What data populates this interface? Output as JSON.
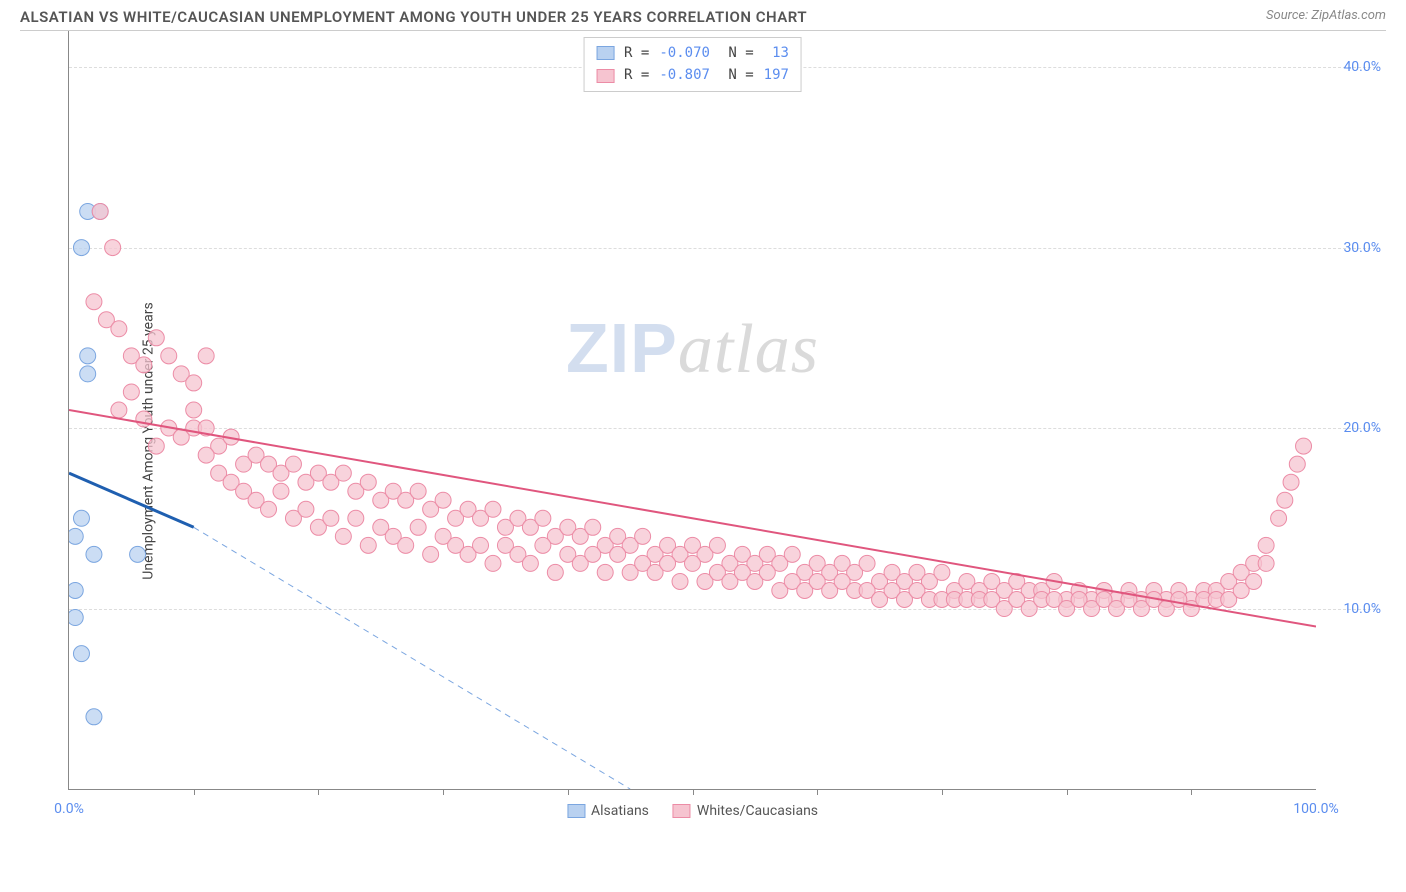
{
  "title": "ALSATIAN VS WHITE/CAUCASIAN UNEMPLOYMENT AMONG YOUTH UNDER 25 YEARS CORRELATION CHART",
  "source": "Source: ZipAtlas.com",
  "ylabel": "Unemployment Among Youth under 25 years",
  "watermark_zip": "ZIP",
  "watermark_atlas": "atlas",
  "chart": {
    "type": "scatter",
    "xlim": [
      0,
      100
    ],
    "ylim": [
      0,
      42
    ],
    "xtick_label_left": "0.0%",
    "xtick_label_right": "100.0%",
    "xtick_positions": [
      10,
      20,
      30,
      40,
      50,
      60,
      70,
      80,
      90
    ],
    "ytick_labels": [
      "10.0%",
      "20.0%",
      "30.0%",
      "40.0%"
    ],
    "ytick_values": [
      10,
      20,
      30,
      40
    ],
    "grid_color": "#dddddd",
    "background_color": "#ffffff",
    "marker_radius": 8,
    "series": [
      {
        "name": "Alsatians",
        "fill": "#b9d1f0",
        "stroke": "#7ba6e0",
        "r_value": "-0.070",
        "n_value": "13",
        "trend_solid": {
          "x1": 0,
          "y1": 17.5,
          "x2": 10,
          "y2": 14.5,
          "color": "#1f5fb0",
          "width": 3
        },
        "trend_dashed": {
          "x1": 10,
          "y1": 14.5,
          "x2": 45,
          "y2": 0,
          "color": "#7ba6e0",
          "width": 1
        },
        "points": [
          [
            1.5,
            32
          ],
          [
            1,
            30
          ],
          [
            1.5,
            24
          ],
          [
            1.5,
            23
          ],
          [
            1,
            15
          ],
          [
            0.5,
            14
          ],
          [
            2,
            13
          ],
          [
            5.5,
            13
          ],
          [
            0.5,
            11
          ],
          [
            0.5,
            9.5
          ],
          [
            1,
            7.5
          ],
          [
            2,
            4
          ],
          [
            2.5,
            32
          ]
        ]
      },
      {
        "name": "Whites/Caucasians",
        "fill": "#f6c4d0",
        "stroke": "#ec8ca6",
        "r_value": "-0.807",
        "n_value": "197",
        "trend_solid": {
          "x1": 0,
          "y1": 21,
          "x2": 100,
          "y2": 9,
          "color": "#e0567e",
          "width": 2
        },
        "points": [
          [
            2.5,
            32
          ],
          [
            3.5,
            30
          ],
          [
            2,
            27
          ],
          [
            3,
            26
          ],
          [
            4,
            25.5
          ],
          [
            5,
            24
          ],
          [
            6,
            23.5
          ],
          [
            7,
            25
          ],
          [
            8,
            24
          ],
          [
            9,
            23
          ],
          [
            5,
            22
          ],
          [
            10,
            22.5
          ],
          [
            11,
            24
          ],
          [
            4,
            21
          ],
          [
            6,
            20.5
          ],
          [
            8,
            20
          ],
          [
            9,
            19.5
          ],
          [
            10,
            20
          ],
          [
            12,
            19
          ],
          [
            13,
            19.5
          ],
          [
            7,
            19
          ],
          [
            14,
            18
          ],
          [
            15,
            18.5
          ],
          [
            16,
            18
          ],
          [
            17,
            17.5
          ],
          [
            18,
            18
          ],
          [
            11,
            18.5
          ],
          [
            12,
            17.5
          ],
          [
            19,
            17
          ],
          [
            20,
            17.5
          ],
          [
            21,
            17
          ],
          [
            22,
            17.5
          ],
          [
            23,
            16.5
          ],
          [
            24,
            17
          ],
          [
            25,
            16
          ],
          [
            26,
            16.5
          ],
          [
            13,
            17
          ],
          [
            14,
            16.5
          ],
          [
            27,
            16
          ],
          [
            28,
            16.5
          ],
          [
            29,
            15.5
          ],
          [
            30,
            16
          ],
          [
            31,
            15
          ],
          [
            32,
            15.5
          ],
          [
            33,
            15
          ],
          [
            34,
            15.5
          ],
          [
            35,
            14.5
          ],
          [
            36,
            15
          ],
          [
            15,
            16
          ],
          [
            16,
            15.5
          ],
          [
            37,
            14.5
          ],
          [
            38,
            15
          ],
          [
            39,
            14
          ],
          [
            40,
            14.5
          ],
          [
            41,
            14
          ],
          [
            42,
            14.5
          ],
          [
            43,
            13.5
          ],
          [
            44,
            14
          ],
          [
            45,
            13.5
          ],
          [
            46,
            14
          ],
          [
            17,
            16.5
          ],
          [
            18,
            15
          ],
          [
            19,
            15.5
          ],
          [
            20,
            14.5
          ],
          [
            47,
            13
          ],
          [
            48,
            13.5
          ],
          [
            49,
            13
          ],
          [
            50,
            13.5
          ],
          [
            51,
            13
          ],
          [
            52,
            13.5
          ],
          [
            53,
            12.5
          ],
          [
            54,
            13
          ],
          [
            55,
            12.5
          ],
          [
            56,
            13
          ],
          [
            57,
            12.5
          ],
          [
            58,
            13
          ],
          [
            59,
            12
          ],
          [
            60,
            12.5
          ],
          [
            61,
            12
          ],
          [
            62,
            12.5
          ],
          [
            21,
            15
          ],
          [
            22,
            14
          ],
          [
            23,
            15
          ],
          [
            24,
            13.5
          ],
          [
            25,
            14.5
          ],
          [
            63,
            12
          ],
          [
            64,
            12.5
          ],
          [
            65,
            11.5
          ],
          [
            66,
            12
          ],
          [
            67,
            11.5
          ],
          [
            68,
            12
          ],
          [
            69,
            11.5
          ],
          [
            70,
            12
          ],
          [
            71,
            11
          ],
          [
            72,
            11.5
          ],
          [
            73,
            11
          ],
          [
            74,
            11.5
          ],
          [
            75,
            11
          ],
          [
            76,
            11.5
          ],
          [
            77,
            11
          ],
          [
            26,
            14
          ],
          [
            27,
            13.5
          ],
          [
            28,
            14.5
          ],
          [
            29,
            13
          ],
          [
            30,
            14
          ],
          [
            78,
            11
          ],
          [
            79,
            11.5
          ],
          [
            80,
            10.5
          ],
          [
            81,
            11
          ],
          [
            82,
            10.5
          ],
          [
            83,
            11
          ],
          [
            84,
            10.5
          ],
          [
            85,
            11
          ],
          [
            86,
            10.5
          ],
          [
            87,
            11
          ],
          [
            88,
            10.5
          ],
          [
            89,
            11
          ],
          [
            90,
            10.5
          ],
          [
            91,
            11
          ],
          [
            92,
            11
          ],
          [
            31,
            13.5
          ],
          [
            32,
            13
          ],
          [
            33,
            13.5
          ],
          [
            34,
            12.5
          ],
          [
            35,
            13.5
          ],
          [
            93,
            11.5
          ],
          [
            94,
            12
          ],
          [
            95,
            12.5
          ],
          [
            96,
            13.5
          ],
          [
            97,
            15
          ],
          [
            97.5,
            16
          ],
          [
            98,
            17
          ],
          [
            98.5,
            18
          ],
          [
            99,
            19
          ],
          [
            36,
            13
          ],
          [
            37,
            12.5
          ],
          [
            38,
            13.5
          ],
          [
            39,
            12
          ],
          [
            40,
            13
          ],
          [
            41,
            12.5
          ],
          [
            42,
            13
          ],
          [
            43,
            12
          ],
          [
            44,
            13
          ],
          [
            45,
            12
          ],
          [
            46,
            12.5
          ],
          [
            47,
            12
          ],
          [
            48,
            12.5
          ],
          [
            49,
            11.5
          ],
          [
            50,
            12.5
          ],
          [
            51,
            11.5
          ],
          [
            52,
            12
          ],
          [
            53,
            11.5
          ],
          [
            54,
            12
          ],
          [
            55,
            11.5
          ],
          [
            56,
            12
          ],
          [
            57,
            11
          ],
          [
            58,
            11.5
          ],
          [
            59,
            11
          ],
          [
            60,
            11.5
          ],
          [
            61,
            11
          ],
          [
            62,
            11.5
          ],
          [
            63,
            11
          ],
          [
            64,
            11
          ],
          [
            65,
            10.5
          ],
          [
            66,
            11
          ],
          [
            67,
            10.5
          ],
          [
            68,
            11
          ],
          [
            69,
            10.5
          ],
          [
            70,
            10.5
          ],
          [
            71,
            10.5
          ],
          [
            72,
            10.5
          ],
          [
            73,
            10.5
          ],
          [
            74,
            10.5
          ],
          [
            75,
            10
          ],
          [
            76,
            10.5
          ],
          [
            77,
            10
          ],
          [
            78,
            10.5
          ],
          [
            79,
            10.5
          ],
          [
            80,
            10
          ],
          [
            81,
            10.5
          ],
          [
            82,
            10
          ],
          [
            83,
            10.5
          ],
          [
            84,
            10
          ],
          [
            85,
            10.5
          ],
          [
            86,
            10
          ],
          [
            87,
            10.5
          ],
          [
            88,
            10
          ],
          [
            89,
            10.5
          ],
          [
            90,
            10
          ],
          [
            91,
            10.5
          ],
          [
            92,
            10.5
          ],
          [
            93,
            10.5
          ],
          [
            94,
            11
          ],
          [
            95,
            11.5
          ],
          [
            96,
            12.5
          ],
          [
            10,
            21
          ],
          [
            11,
            20
          ]
        ]
      }
    ]
  }
}
